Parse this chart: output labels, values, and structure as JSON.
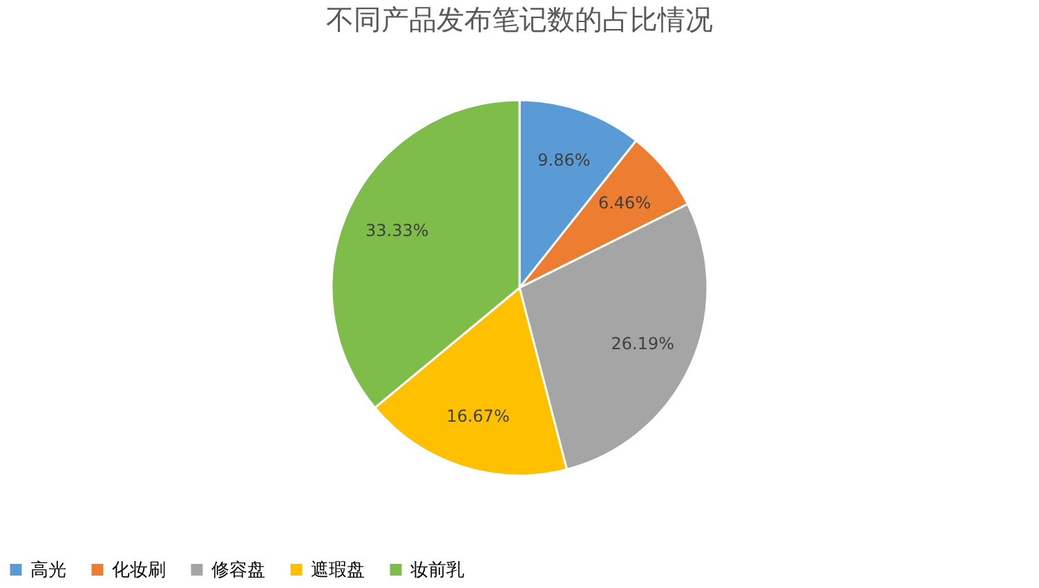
{
  "chart_data": {
    "type": "pie",
    "title": "不同产品发布笔记数的占比情况",
    "categories": [
      "高光",
      "化妆刷",
      "修容盘",
      "遮瑕盘",
      "妆前乳"
    ],
    "values": [
      9.86,
      6.46,
      26.19,
      16.67,
      33.33
    ],
    "colors": [
      "#5b9bd5",
      "#ed7d31",
      "#a5a5a5",
      "#ffc000",
      "#7fbd4a"
    ],
    "value_labels": [
      "9.86%",
      "6.46%",
      "26.19%",
      "16.67%",
      "33.33%"
    ],
    "legend": "bottom"
  }
}
